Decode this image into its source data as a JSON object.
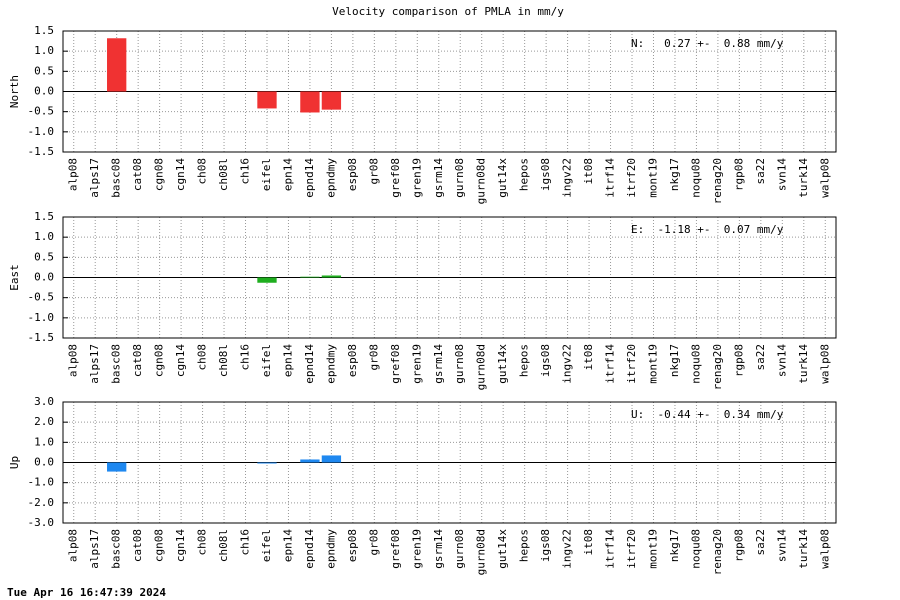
{
  "title": "Velocity comparison of PMLA in mm/y",
  "timestamp": "Tue Apr 16 16:47:39 2024",
  "chart_data": [
    {
      "type": "bar",
      "ylabel": "North",
      "annotation": "N:   0.27 +-  0.88 mm/y",
      "color": "#f03232",
      "grid": true,
      "categories": [
        "alp08",
        "alps17",
        "basc08",
        "cat08",
        "cgn08",
        "cgn14",
        "ch08",
        "ch08l",
        "ch16",
        "eifel",
        "epn14",
        "epnd14",
        "epndmy",
        "esp08",
        "gr08",
        "gref08",
        "gren19",
        "gsrm14",
        "gurn08",
        "gurn08d",
        "gut14x",
        "hepos",
        "igs08",
        "ingv22",
        "it08",
        "itrf14",
        "itrf20",
        "mont19",
        "nkg17",
        "noqu08",
        "renag20",
        "rgp08",
        "sa22",
        "svn14",
        "turk14",
        "walp08"
      ],
      "values": [
        0,
        0,
        1.32,
        0,
        0,
        0,
        0,
        0,
        0,
        -0.42,
        0,
        -0.52,
        -0.45,
        0,
        0,
        0,
        0,
        0,
        0,
        0,
        0,
        0,
        0,
        0,
        0,
        0,
        0,
        0,
        0,
        0,
        0,
        0,
        0,
        0,
        0,
        0
      ],
      "ylim": [
        -1.5,
        1.5
      ],
      "yticks": [
        -1.5,
        {
          "value": -1,
          "label": "-1.0"
        },
        -0.5,
        {
          "value": 0,
          "label": "0.0"
        },
        0.5,
        {
          "value": 1,
          "label": "1.0"
        },
        1.5
      ]
    },
    {
      "type": "bar",
      "ylabel": "East",
      "annotation": "E:  -1.18 +-  0.07 mm/y",
      "color": "#1fae1f",
      "grid": true,
      "categories": [
        "alp08",
        "alps17",
        "basc08",
        "cat08",
        "cgn08",
        "cgn14",
        "ch08",
        "ch08l",
        "ch16",
        "eifel",
        "epn14",
        "epnd14",
        "epndmy",
        "esp08",
        "gr08",
        "gref08",
        "gren19",
        "gsrm14",
        "gurn08",
        "gurn08d",
        "gut14x",
        "hepos",
        "igs08",
        "ingv22",
        "it08",
        "itrf14",
        "itrf20",
        "mont19",
        "nkg17",
        "noqu08",
        "renag20",
        "rgp08",
        "sa22",
        "svn14",
        "turk14",
        "walp08"
      ],
      "values": [
        0,
        0,
        0,
        0,
        0,
        0,
        0,
        0,
        0,
        -0.13,
        0,
        0.02,
        0.05,
        0,
        0,
        0,
        0,
        0,
        0,
        0,
        0,
        0,
        0,
        0,
        0,
        0,
        0,
        0,
        0,
        0,
        0,
        0,
        0,
        0,
        0,
        0
      ],
      "ylim": [
        -1.5,
        1.5
      ],
      "yticks": [
        -1.5,
        {
          "value": -1,
          "label": "-1.0"
        },
        -0.5,
        {
          "value": 0,
          "label": "0.0"
        },
        0.5,
        {
          "value": 1,
          "label": "1.0"
        },
        1.5
      ]
    },
    {
      "type": "bar",
      "ylabel": "Up",
      "annotation": "U:  -0.44 +-  0.34 mm/y",
      "color": "#1e88f0",
      "grid": true,
      "categories": [
        "alp08",
        "alps17",
        "basc08",
        "cat08",
        "cgn08",
        "cgn14",
        "ch08",
        "ch08l",
        "ch16",
        "eifel",
        "epn14",
        "epnd14",
        "epndmy",
        "esp08",
        "gr08",
        "gref08",
        "gren19",
        "gsrm14",
        "gurn08",
        "gurn08d",
        "gut14x",
        "hepos",
        "igs08",
        "ingv22",
        "it08",
        "itrf14",
        "itrf20",
        "mont19",
        "nkg17",
        "noqu08",
        "renag20",
        "rgp08",
        "sa22",
        "svn14",
        "turk14",
        "walp08"
      ],
      "values": [
        0,
        0,
        -0.45,
        0,
        0,
        0,
        0,
        0,
        0,
        -0.05,
        0,
        0.15,
        0.35,
        0,
        0,
        0,
        0,
        0,
        0,
        0,
        0,
        0,
        0,
        0,
        0,
        0,
        0,
        0,
        0,
        0,
        0,
        0,
        0,
        0,
        0,
        0
      ],
      "ylim": [
        -3,
        3
      ],
      "yticks": [
        {
          "value": -3,
          "label": "-3.0"
        },
        {
          "value": -2,
          "label": "-2.0"
        },
        {
          "value": -1,
          "label": "-1.0"
        },
        {
          "value": 0,
          "label": "0.0"
        },
        {
          "value": 1,
          "label": "1.0"
        },
        {
          "value": 2,
          "label": "2.0"
        },
        {
          "value": 3,
          "label": "3.0"
        }
      ]
    }
  ]
}
